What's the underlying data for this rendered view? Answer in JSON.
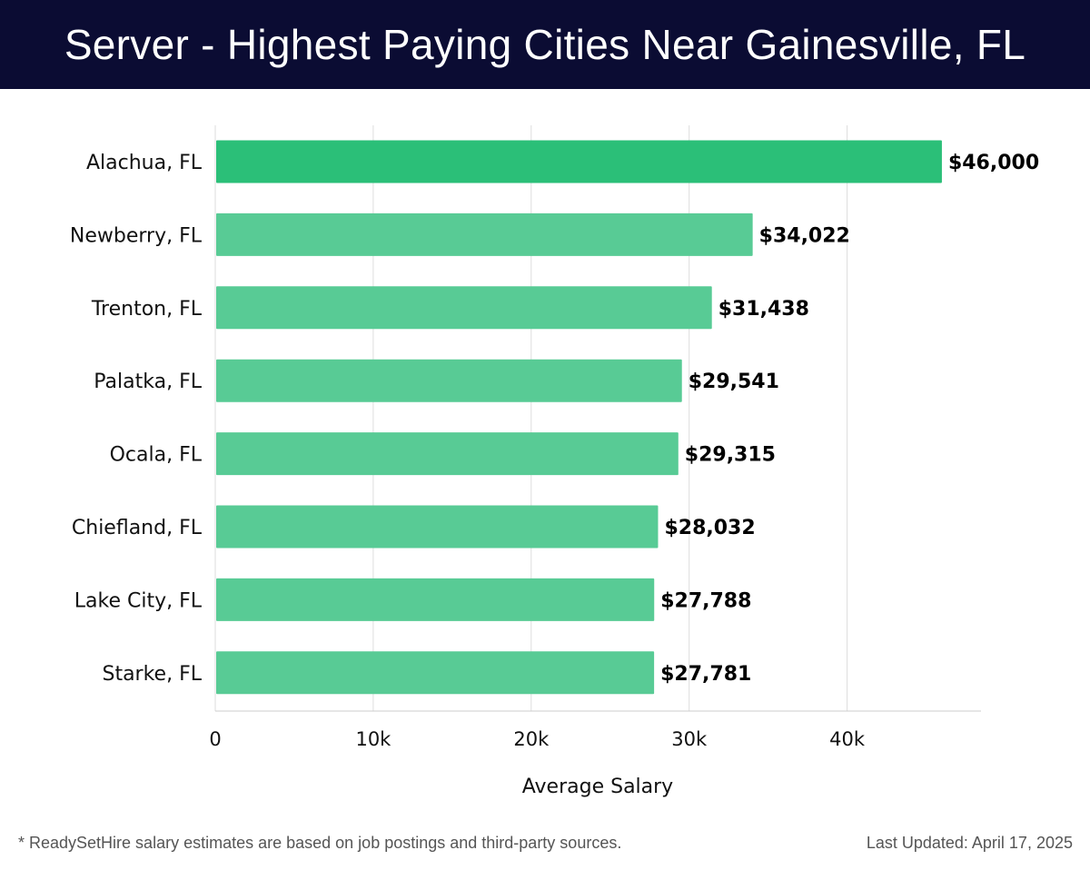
{
  "header": {
    "title": "Server - Highest Paying Cities Near Gainesville, FL"
  },
  "footer": {
    "note": "* ReadySetHire salary estimates are based on job postings and third-party sources.",
    "updated": "Last Updated: April 17, 2025"
  },
  "colors": {
    "header_bg": "#0b0c33",
    "bar_top": "#2bbf78",
    "bar": "#58cb95",
    "grid": "#dddddd"
  },
  "chart_data": {
    "type": "bar",
    "orientation": "horizontal",
    "title": "Server - Highest Paying Cities Near Gainesville, FL",
    "xlabel": "Average Salary",
    "ylabel": "",
    "xlim": [
      0,
      48500
    ],
    "xticks": [
      0,
      10000,
      20000,
      30000,
      40000
    ],
    "xtick_labels": [
      "0",
      "10k",
      "20k",
      "30k",
      "40k"
    ],
    "grid": "vertical",
    "categories": [
      "Alachua, FL",
      "Newberry, FL",
      "Trenton, FL",
      "Palatka, FL",
      "Ocala, FL",
      "Chiefland, FL",
      "Lake City, FL",
      "Starke, FL"
    ],
    "values": [
      46000,
      34022,
      31438,
      29541,
      29315,
      28032,
      27788,
      27781
    ],
    "data_labels": [
      "$46,000",
      "$34,022",
      "$31,438",
      "$29,541",
      "$29,315",
      "$28,032",
      "$27,788",
      "$27,781"
    ]
  }
}
